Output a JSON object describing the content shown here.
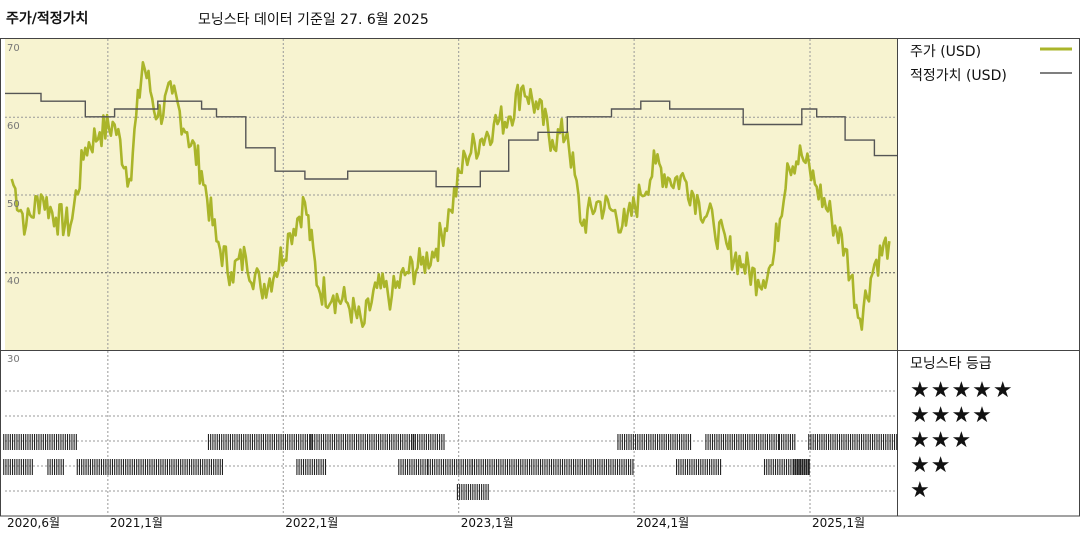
{
  "header": {
    "title": "주가/적정가치",
    "subtitle": "모닝스타 데이터 기준일 27. 6월 2025"
  },
  "legend": {
    "price_label": "주가 (USD)",
    "fair_label": "적정가치 (USD)",
    "price_color": "#aab52a",
    "fair_color": "#555555"
  },
  "rating_panel": {
    "title": "모닝스타 등급",
    "star_rows": [
      "★★★★★",
      "★★★★",
      "★★★",
      "★★",
      "★"
    ]
  },
  "chart_data": {
    "type": "line",
    "ylim": [
      30,
      70
    ],
    "yticks": [
      "70",
      "60",
      "50",
      "40",
      "30"
    ],
    "xticks": [
      "2020,6월",
      "2021,1월",
      "2022,1월",
      "2023,1월",
      "2024,1월",
      "2025,1월"
    ],
    "plot_background": "#f7f3d0",
    "series": [
      {
        "name": "주가 (USD)",
        "x": [
          "2020-06",
          "2020-07",
          "2020-08",
          "2020-09",
          "2020-10",
          "2020-11",
          "2020-12",
          "2021-01",
          "2021-02",
          "2021-03",
          "2021-04",
          "2021-05",
          "2021-06",
          "2021-07",
          "2021-08",
          "2021-09",
          "2021-10",
          "2021-11",
          "2021-12",
          "2022-01",
          "2022-02",
          "2022-03",
          "2022-04",
          "2022-05",
          "2022-06",
          "2022-07",
          "2022-08",
          "2022-09",
          "2022-10",
          "2022-11",
          "2022-12",
          "2023-01",
          "2023-02",
          "2023-03",
          "2023-04",
          "2023-05",
          "2023-06",
          "2023-07",
          "2023-08",
          "2023-09",
          "2023-10",
          "2023-11",
          "2023-12",
          "2024-01",
          "2024-02",
          "2024-03",
          "2024-04",
          "2024-05",
          "2024-06",
          "2024-07",
          "2024-08",
          "2024-09",
          "2024-10",
          "2024-11",
          "2024-12",
          "2025-01",
          "2025-02",
          "2025-03",
          "2025-04",
          "2025-05",
          "2025-06"
        ],
        "values": [
          52,
          46,
          50,
          47,
          46,
          56,
          58,
          59,
          52,
          67,
          60,
          63,
          58,
          53,
          44,
          40,
          42,
          38,
          40,
          45,
          49,
          38,
          37,
          36,
          33,
          38,
          37,
          40,
          41,
          43,
          48,
          55,
          57,
          59,
          60,
          64,
          61,
          57,
          58,
          46,
          49,
          48,
          46,
          50,
          54,
          52,
          52,
          49,
          46,
          43,
          41,
          39,
          41,
          54,
          55,
          51,
          47,
          43,
          34,
          41,
          44
        ]
      },
      {
        "name": "적정가치 (USD)",
        "x": [
          "2020-06",
          "2020-08",
          "2020-11",
          "2021-01",
          "2021-04",
          "2021-07",
          "2021-08",
          "2021-10",
          "2021-12",
          "2022-02",
          "2022-05",
          "2022-08",
          "2022-11",
          "2022-12",
          "2023-02",
          "2023-04",
          "2023-06",
          "2023-08",
          "2023-11",
          "2024-01",
          "2024-03",
          "2024-05",
          "2024-08",
          "2024-10",
          "2024-12",
          "2025-01",
          "2025-03",
          "2025-05",
          "2025-06"
        ],
        "values": [
          63,
          62,
          60,
          61,
          62,
          61,
          60,
          56,
          53,
          52,
          53,
          53,
          51,
          51,
          53,
          57,
          58,
          60,
          61,
          62,
          61,
          61,
          59,
          59,
          61,
          60,
          57,
          55,
          55
        ]
      }
    ],
    "rating_history": {
      "row_labels": [
        "★★★★★",
        "★★★★",
        "★★★",
        "★★",
        "★"
      ],
      "bands": [
        {
          "stars": 4,
          "start": "2020-06",
          "end": "2020-10"
        },
        {
          "stars": 3,
          "start": "2020-06",
          "end": "2020-07"
        },
        {
          "stars": 3,
          "start": "2020-09",
          "end": "2020-09"
        },
        {
          "stars": 3,
          "start": "2020-11",
          "end": "2021-08"
        },
        {
          "stars": 4,
          "start": "2021-08",
          "end": "2022-02"
        },
        {
          "stars": 3,
          "start": "2022-02",
          "end": "2022-03"
        },
        {
          "stars": 4,
          "start": "2022-03",
          "end": "2022-09"
        },
        {
          "stars": 3,
          "start": "2022-09",
          "end": "2022-10"
        },
        {
          "stars": 4,
          "start": "2022-10",
          "end": "2022-11"
        },
        {
          "stars": 3,
          "start": "2022-11",
          "end": "2023-01"
        },
        {
          "stars": 2,
          "start": "2023-01",
          "end": "2023-02"
        },
        {
          "stars": 3,
          "start": "2023-02",
          "end": "2023-12"
        },
        {
          "stars": 4,
          "start": "2023-12",
          "end": "2024-04"
        },
        {
          "stars": 3,
          "start": "2024-04",
          "end": "2024-06"
        },
        {
          "stars": 4,
          "start": "2024-06",
          "end": "2024-10"
        },
        {
          "stars": 3,
          "start": "2024-10",
          "end": "2024-12"
        },
        {
          "stars": 4,
          "start": "2024-11",
          "end": "2024-11"
        },
        {
          "stars": 3,
          "start": "2024-12",
          "end": "2024-12"
        },
        {
          "stars": 4,
          "start": "2025-01",
          "end": "2025-06"
        }
      ]
    }
  }
}
